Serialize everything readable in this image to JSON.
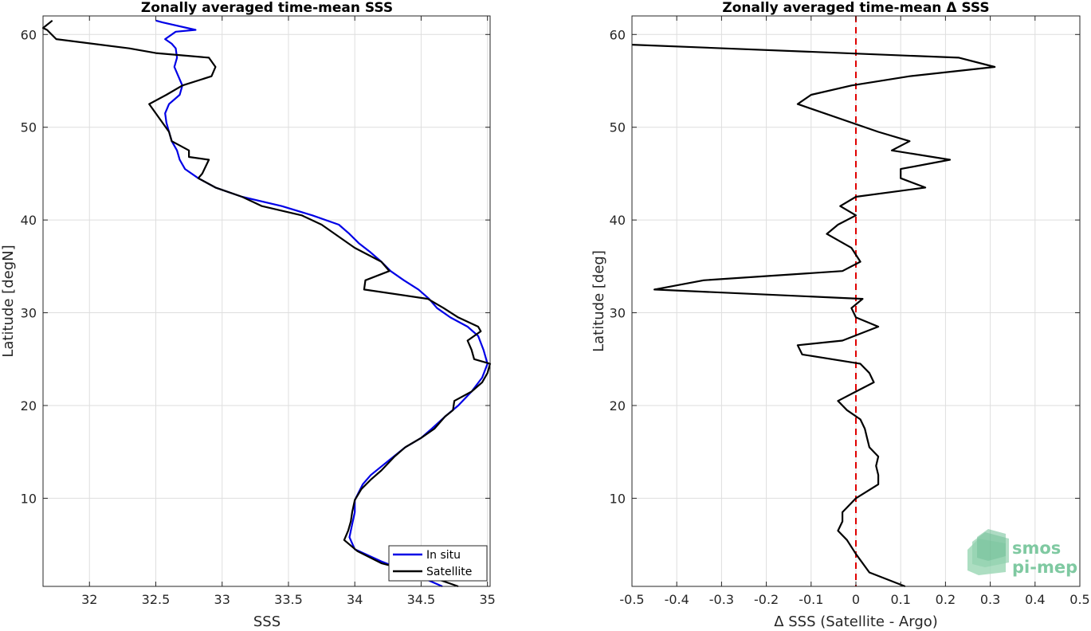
{
  "chart_data": [
    {
      "type": "line",
      "title": "Zonally averaged time-mean SSS",
      "xlabel": "SSS",
      "ylabel": "Latitude [degN]",
      "xlim": [
        31.65,
        35.02
      ],
      "ylim": [
        0.5,
        62
      ],
      "xticks": [
        "32",
        "32.5",
        "33",
        "33.5",
        "34",
        "34.5",
        "35"
      ],
      "xtick_values": [
        32,
        32.5,
        33,
        33.5,
        34,
        34.5,
        35
      ],
      "yticks": [
        "10",
        "20",
        "30",
        "40",
        "50",
        "60"
      ],
      "ytick_values": [
        10,
        20,
        30,
        40,
        50,
        60
      ],
      "grid": true,
      "legend": "bottom-right",
      "series": [
        {
          "name": "In situ",
          "color": "#0000e6",
          "points": [
            [
              34.66,
              0.5
            ],
            [
              34.45,
              1.8
            ],
            [
              34.2,
              3.2
            ],
            [
              34.0,
              4.5
            ],
            [
              33.96,
              5.8
            ],
            [
              33.98,
              7.2
            ],
            [
              34.0,
              8.5
            ],
            [
              34.0,
              9.8
            ],
            [
              34.06,
              11.5
            ],
            [
              34.12,
              12.5
            ],
            [
              34.25,
              14.0
            ],
            [
              34.38,
              15.5
            ],
            [
              34.5,
              16.5
            ],
            [
              34.58,
              17.5
            ],
            [
              34.68,
              18.8
            ],
            [
              34.78,
              20.0
            ],
            [
              34.88,
              21.5
            ],
            [
              34.96,
              23.0
            ],
            [
              35.0,
              24.5
            ],
            [
              34.97,
              26.0
            ],
            [
              34.93,
              27.5
            ],
            [
              34.85,
              28.5
            ],
            [
              34.72,
              29.5
            ],
            [
              34.62,
              30.5
            ],
            [
              34.56,
              31.5
            ],
            [
              34.48,
              32.5
            ],
            [
              34.37,
              33.5
            ],
            [
              34.27,
              34.5
            ],
            [
              34.2,
              35.5
            ],
            [
              34.12,
              36.5
            ],
            [
              34.03,
              37.5
            ],
            [
              33.96,
              38.5
            ],
            [
              33.88,
              39.5
            ],
            [
              33.68,
              40.5
            ],
            [
              33.45,
              41.5
            ],
            [
              33.15,
              42.5
            ],
            [
              32.95,
              43.5
            ],
            [
              32.82,
              44.5
            ],
            [
              32.72,
              45.5
            ],
            [
              32.68,
              46.5
            ],
            [
              32.66,
              47.5
            ],
            [
              32.62,
              48.5
            ],
            [
              32.6,
              49.5
            ],
            [
              32.58,
              50.5
            ],
            [
              32.57,
              51.5
            ],
            [
              32.6,
              52.5
            ],
            [
              32.68,
              53.5
            ],
            [
              32.7,
              54.5
            ],
            [
              32.67,
              55.5
            ],
            [
              32.64,
              56.5
            ],
            [
              32.66,
              57.5
            ],
            [
              32.65,
              58.5
            ],
            [
              32.62,
              59.0
            ],
            [
              32.57,
              59.5
            ],
            [
              32.65,
              60.3
            ],
            [
              32.8,
              60.5
            ],
            [
              32.55,
              61.3
            ],
            [
              32.5,
              61.5
            ]
          ]
        },
        {
          "name": "Satellite",
          "color": "#000000",
          "points": [
            [
              34.78,
              0.5
            ],
            [
              34.52,
              1.8
            ],
            [
              34.2,
              3.0
            ],
            [
              34.02,
              4.3
            ],
            [
              33.92,
              5.5
            ],
            [
              33.95,
              6.5
            ],
            [
              33.97,
              7.5
            ],
            [
              33.98,
              8.5
            ],
            [
              34.0,
              9.8
            ],
            [
              34.05,
              11.0
            ],
            [
              34.12,
              12.0
            ],
            [
              34.2,
              13.0
            ],
            [
              34.3,
              14.5
            ],
            [
              34.38,
              15.5
            ],
            [
              34.5,
              16.5
            ],
            [
              34.6,
              17.5
            ],
            [
              34.68,
              18.8
            ],
            [
              34.74,
              19.5
            ],
            [
              34.75,
              20.5
            ],
            [
              34.88,
              21.5
            ],
            [
              34.96,
              22.5
            ],
            [
              35.0,
              23.5
            ],
            [
              35.02,
              24.5
            ],
            [
              34.9,
              25.0
            ],
            [
              34.88,
              26.0
            ],
            [
              34.85,
              27.0
            ],
            [
              34.95,
              28.0
            ],
            [
              34.93,
              28.5
            ],
            [
              34.78,
              29.5
            ],
            [
              34.67,
              30.5
            ],
            [
              34.55,
              31.5
            ],
            [
              34.07,
              32.5
            ],
            [
              34.08,
              33.5
            ],
            [
              34.26,
              34.5
            ],
            [
              34.2,
              35.5
            ],
            [
              34.0,
              37.0
            ],
            [
              33.75,
              39.5
            ],
            [
              33.6,
              40.5
            ],
            [
              33.3,
              41.5
            ],
            [
              33.15,
              42.5
            ],
            [
              32.95,
              43.5
            ],
            [
              32.82,
              44.5
            ],
            [
              32.85,
              45.0
            ],
            [
              32.9,
              46.5
            ],
            [
              32.75,
              46.8
            ],
            [
              32.75,
              47.5
            ],
            [
              32.62,
              48.5
            ],
            [
              32.6,
              49.5
            ],
            [
              32.55,
              50.5
            ],
            [
              32.5,
              51.5
            ],
            [
              32.45,
              52.5
            ],
            [
              32.58,
              53.5
            ],
            [
              32.7,
              54.5
            ],
            [
              32.92,
              55.5
            ],
            [
              32.95,
              56.5
            ],
            [
              32.9,
              57.5
            ],
            [
              32.5,
              58.0
            ],
            [
              32.3,
              58.5
            ],
            [
              31.75,
              59.5
            ],
            [
              31.68,
              60.5
            ],
            [
              31.65,
              60.7
            ],
            [
              31.72,
              61.5
            ]
          ]
        }
      ]
    },
    {
      "type": "line",
      "title": "Zonally averaged time-mean Δ SSS",
      "xlabel": "Δ SSS (Satellite - Argo)",
      "ylabel": "Latitude [deg]",
      "xlim": [
        -0.5,
        0.5
      ],
      "ylim": [
        0.5,
        62
      ],
      "xticks": [
        "-0.5",
        "-0.4",
        "-0.3",
        "-0.2",
        "-0.1",
        "0",
        "0.1",
        "0.2",
        "0.3",
        "0.4",
        "0.5"
      ],
      "xtick_values": [
        -0.5,
        -0.4,
        -0.3,
        -0.2,
        -0.1,
        0,
        0.1,
        0.2,
        0.3,
        0.4,
        0.5
      ],
      "yticks": [
        "10",
        "20",
        "30",
        "40",
        "50",
        "60"
      ],
      "ytick_values": [
        10,
        20,
        30,
        40,
        50,
        60
      ],
      "grid": true,
      "zero_line_color": "#e00000",
      "series": [
        {
          "color": "#000000",
          "points": [
            [
              0.11,
              0.5
            ],
            [
              0.03,
              2.0
            ],
            [
              0.0,
              4.0
            ],
            [
              -0.02,
              5.5
            ],
            [
              -0.04,
              6.5
            ],
            [
              -0.03,
              7.5
            ],
            [
              -0.03,
              8.5
            ],
            [
              0.0,
              10.0
            ],
            [
              0.05,
              11.5
            ],
            [
              0.05,
              12.5
            ],
            [
              0.045,
              13.5
            ],
            [
              0.05,
              14.5
            ],
            [
              0.03,
              15.5
            ],
            [
              0.025,
              16.5
            ],
            [
              0.02,
              17.5
            ],
            [
              0.01,
              18.5
            ],
            [
              -0.02,
              19.5
            ],
            [
              -0.04,
              20.5
            ],
            [
              0.0,
              21.5
            ],
            [
              0.04,
              22.5
            ],
            [
              0.03,
              23.5
            ],
            [
              0.01,
              24.5
            ],
            [
              -0.12,
              25.5
            ],
            [
              -0.13,
              26.5
            ],
            [
              -0.03,
              27.0
            ],
            [
              0.05,
              28.5
            ],
            [
              0.0,
              29.5
            ],
            [
              -0.01,
              30.5
            ],
            [
              0.015,
              31.5
            ],
            [
              -0.45,
              32.5
            ],
            [
              -0.34,
              33.5
            ],
            [
              -0.03,
              34.5
            ],
            [
              0.01,
              35.5
            ],
            [
              -0.01,
              37.0
            ],
            [
              -0.065,
              38.5
            ],
            [
              -0.04,
              39.5
            ],
            [
              0.0,
              40.5
            ],
            [
              -0.035,
              41.5
            ],
            [
              0.0,
              42.5
            ],
            [
              0.155,
              43.5
            ],
            [
              0.1,
              44.5
            ],
            [
              0.1,
              45.5
            ],
            [
              0.21,
              46.5
            ],
            [
              0.08,
              47.5
            ],
            [
              0.12,
              48.5
            ],
            [
              0.05,
              49.5
            ],
            [
              -0.13,
              52.5
            ],
            [
              -0.1,
              53.5
            ],
            [
              -0.01,
              54.5
            ],
            [
              0.12,
              55.5
            ],
            [
              0.31,
              56.5
            ],
            [
              0.23,
              57.5
            ],
            [
              -0.5,
              58.9
            ]
          ]
        }
      ]
    }
  ],
  "legend": {
    "items": [
      {
        "label": "In situ",
        "color": "#0000e6"
      },
      {
        "label": "Satellite",
        "color": "#000000"
      }
    ]
  },
  "logo": {
    "line1": "smos",
    "line2": "pi-mep"
  }
}
